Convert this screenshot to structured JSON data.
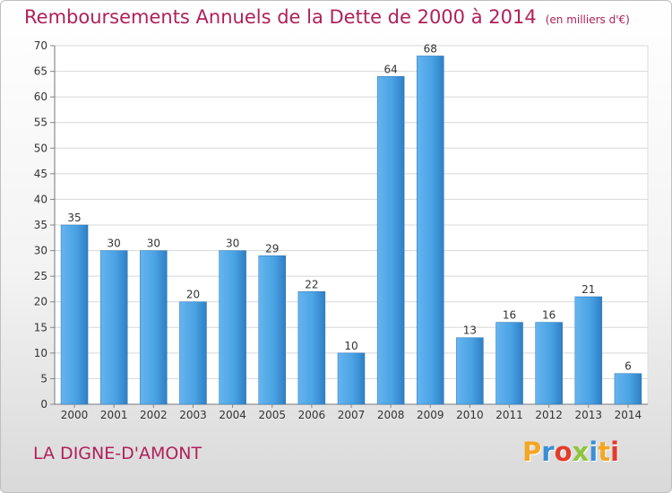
{
  "chart_data": {
    "type": "bar",
    "title": "Remboursements Annuels de la Dette de 2000 à 2014",
    "unit": "(en milliers d'€)",
    "subtitle": "LA DIGNE-D'AMONT",
    "categories": [
      "2000",
      "2001",
      "2002",
      "2003",
      "2004",
      "2005",
      "2006",
      "2007",
      "2008",
      "2009",
      "2010",
      "2011",
      "2012",
      "2013",
      "2014"
    ],
    "values": [
      35,
      30,
      30,
      20,
      30,
      29,
      22,
      10,
      64,
      68,
      13,
      16,
      16,
      21,
      6
    ],
    "ylim": [
      0,
      70
    ],
    "yticks": [
      0,
      5,
      10,
      15,
      20,
      25,
      30,
      35,
      40,
      45,
      50,
      55,
      60,
      65,
      70
    ],
    "grid": true,
    "bar_color": "#3f95d8"
  },
  "logo": {
    "letters": [
      "P",
      "r",
      "o",
      "x",
      "i",
      "t",
      "i"
    ],
    "colors": [
      "#f5a623",
      "#3a8fd6",
      "#e43b2b",
      "#8fc43f",
      "#3a8fd6",
      "#f5a623",
      "#e43b2b"
    ]
  }
}
